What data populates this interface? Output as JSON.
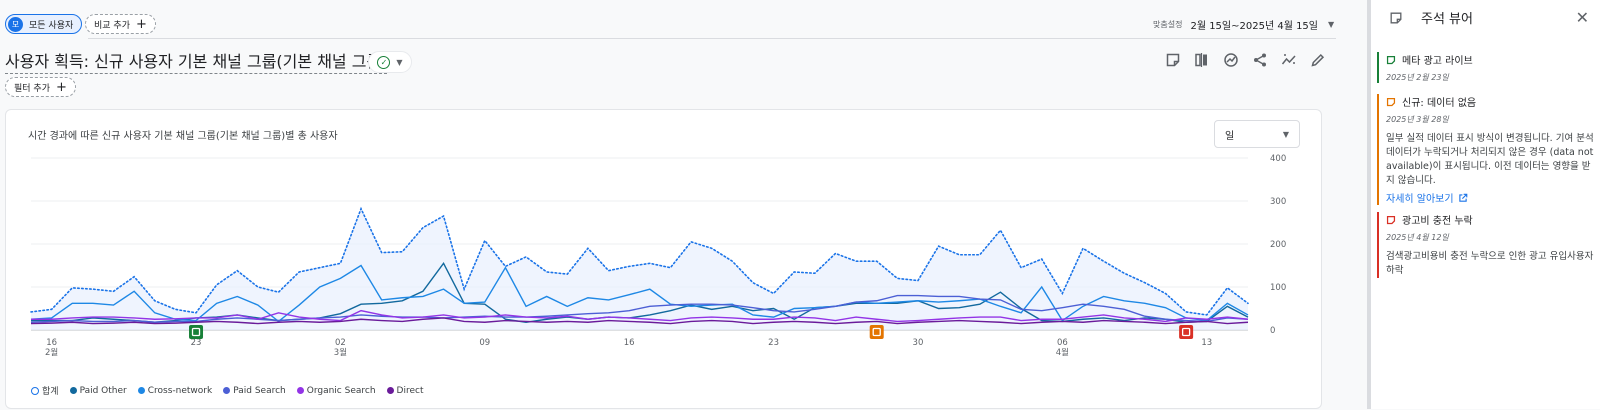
{
  "filters": {
    "all_users": "모든 사용자",
    "all_users_avatar": "모",
    "add_compare": "비교 추가",
    "add_filter": "필터 추가"
  },
  "date": {
    "label": "맞춤설정",
    "range": "2월 15일~2025년 4월 15일"
  },
  "page_title": "사용자 획득: 신규 사용자 기본 채널 그룹(기본 채널 그룹)",
  "card": {
    "title": "시간 경과에 따른 신규 사용자 기본 채널 그룹(기본 채널 그룹)별 총 사용자",
    "granularity": "일"
  },
  "toolbar_icons": [
    "note-icon",
    "compare-columns-icon",
    "insights-icon",
    "share-icon",
    "trend-icon",
    "edit-pencil-icon"
  ],
  "chart_data": {
    "type": "line",
    "y_ticks": [
      "400",
      "300",
      "200",
      "100",
      "0"
    ],
    "ylim": [
      0,
      400
    ],
    "x_ticks": [
      {
        "day": "16",
        "month": "2월"
      },
      {
        "day": "23",
        "month": ""
      },
      {
        "day": "02",
        "month": "3월"
      },
      {
        "day": "09",
        "month": ""
      },
      {
        "day": "16",
        "month": ""
      },
      {
        "day": "23",
        "month": ""
      },
      {
        "day": "30",
        "month": ""
      },
      {
        "day": "06",
        "month": "4월"
      },
      {
        "day": "13",
        "month": ""
      }
    ],
    "x_start": "2025-02-15",
    "grid": true,
    "legend_position": "bottom-left",
    "series": [
      {
        "name": "합계",
        "color": "#1a73e8",
        "style": "dotted-area",
        "values": [
          42,
          48,
          98,
          95,
          90,
          124,
          68,
          48,
          40,
          105,
          138,
          100,
          88,
          135,
          145,
          155,
          282,
          180,
          182,
          238,
          265,
          95,
          208,
          148,
          170,
          135,
          130,
          190,
          138,
          148,
          155,
          145,
          205,
          190,
          160,
          110,
          85,
          135,
          132,
          178,
          160,
          160,
          120,
          115,
          195,
          175,
          175,
          232,
          145,
          165,
          85,
          190,
          160,
          132,
          110,
          85,
          42,
          35,
          98,
          62
        ]
      },
      {
        "name": "Paid Other",
        "color": "#12699e",
        "values": [
          22,
          22,
          22,
          28,
          25,
          22,
          18,
          22,
          28,
          30,
          35,
          28,
          22,
          25,
          28,
          38,
          60,
          62,
          68,
          90,
          155,
          62,
          60,
          25,
          18,
          25,
          30,
          25,
          30,
          28,
          35,
          45,
          58,
          48,
          55,
          45,
          50,
          25,
          52,
          55,
          62,
          62,
          62,
          68,
          50,
          52,
          60,
          88,
          50,
          22,
          20,
          25,
          28,
          22,
          28,
          25,
          18,
          20,
          55,
          30
        ]
      },
      {
        "name": "Cross-network",
        "color": "#1e88e5",
        "values": [
          25,
          28,
          62,
          62,
          58,
          90,
          40,
          25,
          22,
          62,
          78,
          58,
          20,
          58,
          100,
          120,
          150,
          70,
          75,
          78,
          95,
          62,
          65,
          145,
          55,
          78,
          55,
          75,
          70,
          82,
          95,
          60,
          55,
          58,
          60,
          35,
          30,
          50,
          52,
          55,
          65,
          62,
          65,
          68,
          65,
          68,
          72,
          55,
          40,
          100,
          22,
          55,
          78,
          68,
          62,
          52,
          28,
          22,
          62,
          35
        ]
      },
      {
        "name": "Paid Search",
        "color": "#4c5fd5",
        "values": [
          18,
          20,
          22,
          20,
          20,
          22,
          18,
          20,
          20,
          25,
          28,
          25,
          22,
          25,
          28,
          30,
          35,
          32,
          30,
          30,
          28,
          30,
          32,
          30,
          30,
          32,
          35,
          38,
          40,
          45,
          55,
          58,
          60,
          60,
          58,
          52,
          45,
          42,
          48,
          55,
          65,
          68,
          80,
          80,
          78,
          78,
          72,
          70,
          48,
          45,
          52,
          60,
          55,
          48,
          32,
          25,
          22,
          20,
          28,
          25
        ]
      },
      {
        "name": "Organic Search",
        "color": "#9334e6",
        "values": [
          25,
          25,
          28,
          30,
          30,
          28,
          25,
          26,
          28,
          28,
          35,
          25,
          40,
          30,
          25,
          22,
          45,
          35,
          28,
          30,
          35,
          28,
          30,
          35,
          30,
          28,
          32,
          25,
          30,
          28,
          25,
          22,
          28,
          30,
          28,
          25,
          25,
          30,
          28,
          22,
          30,
          25,
          20,
          22,
          25,
          28,
          30,
          30,
          22,
          25,
          25,
          30,
          35,
          28,
          25,
          20,
          28,
          25,
          30,
          25
        ]
      },
      {
        "name": "Direct",
        "color": "#6a1b9a",
        "values": [
          15,
          16,
          18,
          15,
          16,
          18,
          15,
          16,
          18,
          20,
          18,
          15,
          18,
          20,
          18,
          20,
          25,
          22,
          20,
          25,
          28,
          20,
          18,
          22,
          20,
          18,
          20,
          18,
          22,
          20,
          18,
          15,
          20,
          22,
          20,
          15,
          18,
          20,
          18,
          15,
          18,
          20,
          15,
          18,
          20,
          22,
          20,
          18,
          15,
          18,
          20,
          18,
          22,
          20,
          18,
          15,
          18,
          20,
          15,
          18
        ]
      }
    ],
    "annotation_markers": [
      {
        "day_index": 8,
        "color": "#188038",
        "icon": "note-icon"
      },
      {
        "day_index": 41,
        "color": "#e37400",
        "icon": "data-icon"
      },
      {
        "day_index": 56,
        "color": "#d93025",
        "icon": "note-icon"
      }
    ]
  },
  "side": {
    "title": "주석 뷰어",
    "notes": [
      {
        "color": "#188038",
        "icon": "note-icon",
        "title": "메타 광고 라이브",
        "date": "2025년 2월 23일",
        "body": "",
        "link": ""
      },
      {
        "color": "#e37400",
        "icon": "data-icon",
        "title": "신규: 데이터 없음",
        "date": "2025년 3월 28일",
        "body": "일부 실적 데이터 표시 방식이 변경됩니다. 기여 분석 데이터가 누락되거나 처리되지 않은 경우 (data not available)이 표시됩니다. 이전 데이터는 영향을 받지 않습니다.",
        "link": "자세히 알아보기"
      },
      {
        "color": "#d93025",
        "icon": "note-icon",
        "title": "광고비 충전 누락",
        "date": "2025년 4월 12일",
        "body": "검색광고비용비 충전 누락으로 인한 광고 유입사용자 하락",
        "link": ""
      }
    ]
  }
}
